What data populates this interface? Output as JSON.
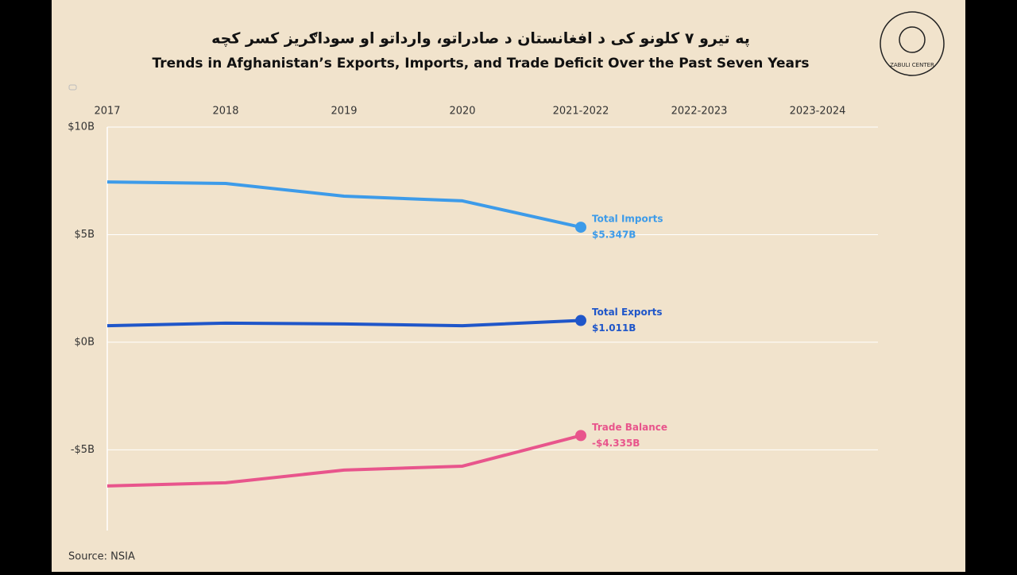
{
  "logo_text": "ZABULI CENTER",
  "chart_data": {
    "type": "line",
    "title": "په تیرو ۷ کلونو کی د افغانستان د صادراتو، وارداتو او سوداګریز کسر کچه",
    "subtitle": "Trends in Afghanistan’s Exports, Imports, and Trade Deficit Over the Past Seven Years",
    "source": "Source: NSIA",
    "categories": [
      "2017",
      "2018",
      "2019",
      "2020",
      "2021-2022",
      "2022-2023",
      "2023-2024"
    ],
    "ylim": [
      -8.75,
      10
    ],
    "yticks": [
      {
        "value": 10,
        "label": "$10B"
      },
      {
        "value": 5,
        "label": "$5B"
      },
      {
        "value": 0,
        "label": "$0B"
      },
      {
        "value": -5,
        "label": "-$5B"
      }
    ],
    "grid": true,
    "series": [
      {
        "name": "Total Imports",
        "color": "#3d9be9",
        "values": [
          7.45,
          7.38,
          6.79,
          6.57,
          5.347,
          null,
          null
        ],
        "value_labels": [
          null,
          null,
          null,
          null,
          "$5.347B",
          null,
          null
        ]
      },
      {
        "name": "Total Exports",
        "color": "#1f56c9",
        "values": [
          0.77,
          0.89,
          0.85,
          0.77,
          1.011,
          null,
          null
        ],
        "value_labels": [
          null,
          null,
          null,
          null,
          "$1.011B",
          null,
          null
        ]
      },
      {
        "name": "Trade Balance",
        "color": "#e8558c",
        "values": [
          -6.68,
          -6.53,
          -5.94,
          -5.76,
          -4.335,
          null,
          null
        ],
        "value_labels": [
          null,
          null,
          null,
          null,
          "-$4.335B",
          null,
          null
        ]
      }
    ]
  }
}
